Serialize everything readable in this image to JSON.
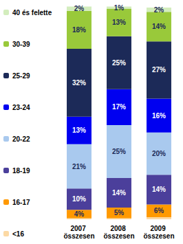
{
  "chart_data": {
    "type": "bar",
    "stacked": true,
    "orientation": "vertical",
    "categories": [
      "2007 összesen",
      "2008 összesen",
      "2009 összesen"
    ],
    "series": [
      {
        "name": "<16",
        "color": "#fcd9a4",
        "values": [
          0.5,
          0.5,
          1
        ],
        "value_labels": [
          null,
          null,
          null
        ]
      },
      {
        "name": "16-17",
        "color": "#ff9900",
        "values": [
          4,
          5,
          6
        ],
        "value_labels": [
          "4%",
          "5%",
          "6%"
        ]
      },
      {
        "name": "18-19",
        "color": "#4b3f9b",
        "values": [
          10,
          14,
          14
        ],
        "value_labels": [
          "10%",
          "14%",
          "14%"
        ]
      },
      {
        "name": "20-22",
        "color": "#a9c9ee",
        "values": [
          21,
          25,
          20
        ],
        "value_labels": [
          "21%",
          "25%",
          "20%"
        ]
      },
      {
        "name": "23-24",
        "color": "#0000f0",
        "values": [
          13,
          17,
          16
        ],
        "value_labels": [
          "13%",
          "17%",
          "16%"
        ]
      },
      {
        "name": "25-29",
        "color": "#1c2a58",
        "values": [
          32,
          25,
          27
        ],
        "value_labels": [
          "32%",
          "25%",
          "27%"
        ]
      },
      {
        "name": "30-39",
        "color": "#99c93a",
        "values": [
          18,
          13,
          14
        ],
        "value_labels": [
          "18%",
          "13%",
          "14%"
        ]
      },
      {
        "name": "40 és felette",
        "color": "#d3edbd",
        "values": [
          2,
          1,
          2
        ],
        "value_labels": [
          "2%",
          "1%",
          "2%"
        ]
      }
    ],
    "ylim": [
      0,
      101
    ],
    "data_labels": true,
    "legend": "left",
    "tick_labels": "x",
    "grid": false
  }
}
